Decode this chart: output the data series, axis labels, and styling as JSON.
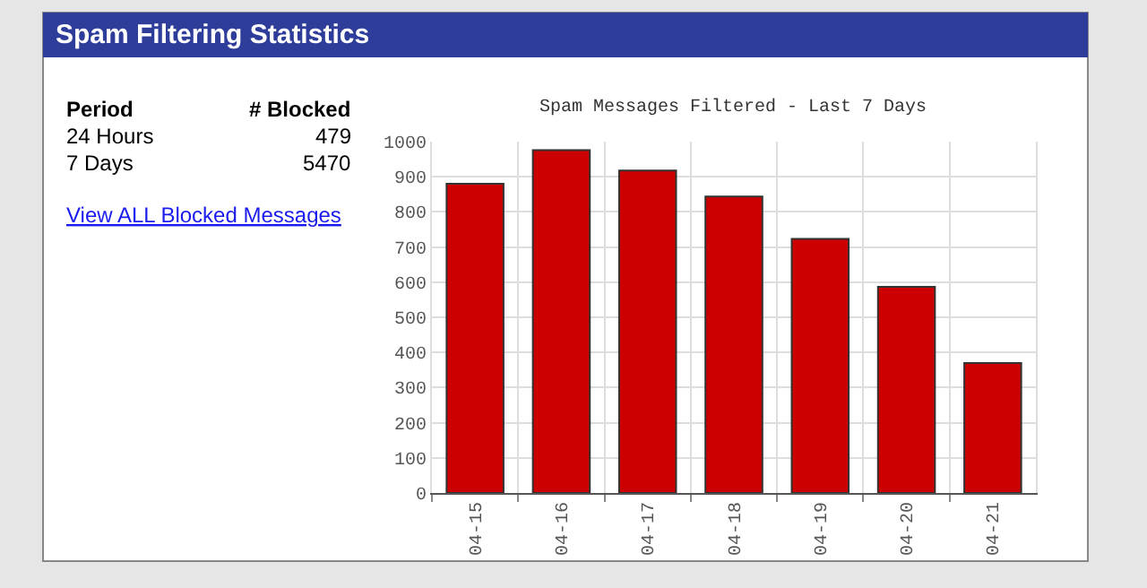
{
  "chart_data": {
    "type": "bar",
    "title": "Spam Filtering Statistics",
    "subtitle": "Spam Messages Filtered - Last 7 Days",
    "annotations": [
      "Period",
      "# Blocked",
      "24 Hours",
      "479",
      "7 Days",
      "5470",
      "View ALL Blocked Messages"
    ],
    "categories": [
      "04-15",
      "04-16",
      "04-17",
      "04-18",
      "04-19",
      "04-20",
      "04-21"
    ],
    "values": [
      880,
      976,
      918,
      844,
      723,
      587,
      370
    ],
    "color": "#cc0000",
    "ylim": [
      0,
      1000
    ],
    "yticks": [
      0,
      100,
      200,
      300,
      400,
      500,
      600,
      700,
      800,
      900,
      1000
    ],
    "grid": true
  }
}
